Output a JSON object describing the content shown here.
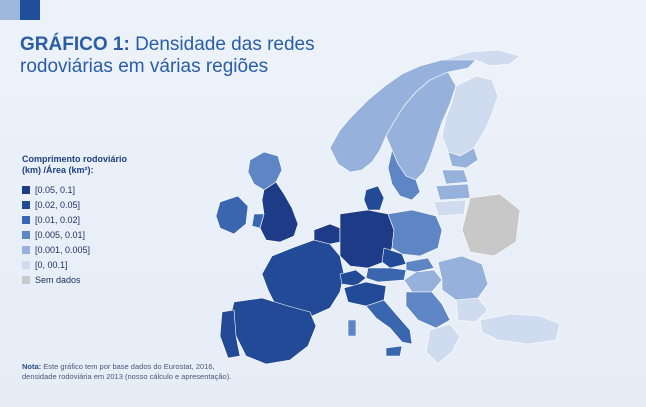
{
  "title": {
    "label": "GRÁFICO 1:",
    "text_line1": "Densidade das redes",
    "text_line2": "rodoviárias em várias regiões"
  },
  "legend": {
    "title_line1": "Comprimento rodoviário",
    "title_line2": "(km) /Área (km²):",
    "items": [
      {
        "label": "[0.05, 0.1]",
        "color": "#1d3b86"
      },
      {
        "label": "[0.02, 0.05]",
        "color": "#234a96"
      },
      {
        "label": "[0.01, 0.02]",
        "color": "#3a66b0"
      },
      {
        "label": "[0.005, 0.01]",
        "color": "#5e86c4"
      },
      {
        "label": "[0.001, 0.005]",
        "color": "#96b2dc"
      },
      {
        "label": "[0, 00.1]",
        "color": "#cfdcf0"
      },
      {
        "label": "Sem dados",
        "color": "#c8c8c8"
      }
    ]
  },
  "note": {
    "label": "Nota:",
    "text": "Este gráfico tem por base dados do Eurostat, 2016, densidade rodoviária em 2013 (nosso cálculo e apresentação)."
  }
}
